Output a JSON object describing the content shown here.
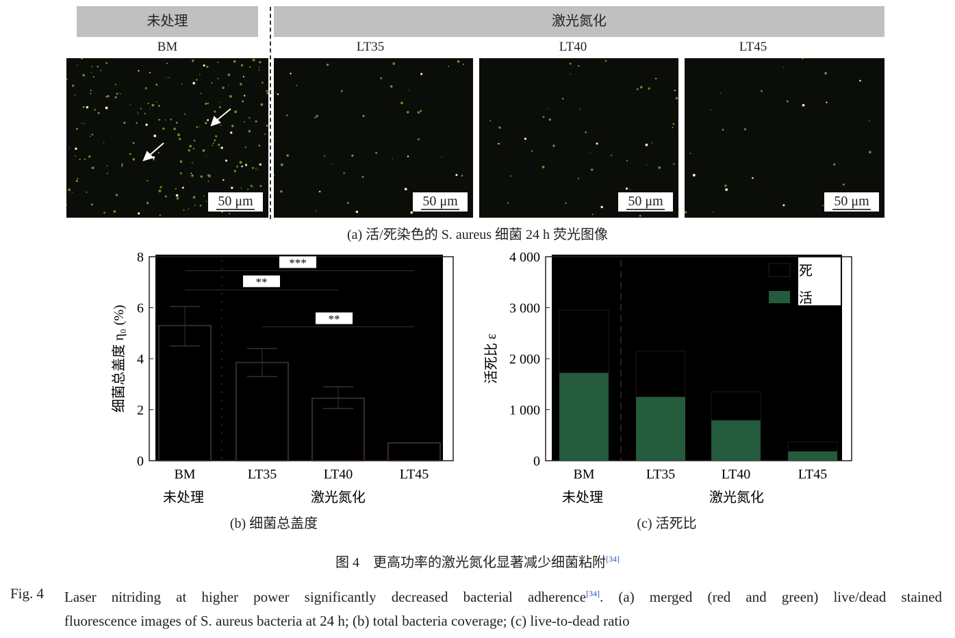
{
  "headers": {
    "untreated": "未处理",
    "laser": "激光氮化"
  },
  "panels": [
    {
      "label": "BM",
      "scale": "50 μm"
    },
    {
      "label": "LT35",
      "scale": "50 μm"
    },
    {
      "label": "LT40",
      "scale": "50 μm"
    },
    {
      "label": "LT45",
      "scale": "50 μm"
    }
  ],
  "caption_a": "(a) 活/死染色的 S. aureus 细菌 24 h 荧光图像",
  "caption_b": "(b) 细菌总盖度",
  "caption_c": "(c) 活死比",
  "group_labels": {
    "untreated": "未处理",
    "laser": "激光氮化"
  },
  "figure_title_cn": "图 4　更高功率的激光氮化显著减少细菌粘附",
  "figure_ref": "[34]",
  "figure_caption_en": {
    "prefix": "Fig. 4",
    "line1": "Laser nitriding at higher power significantly decreased bacterial adherence",
    "ref": "[34]",
    "line1_rest": ". (a) merged (red and green) live/dead stained",
    "line2": "fluorescence images of S. aureus bacteria at 24 h; (b) total bacteria coverage; (c) live-to-dead ratio"
  },
  "chart_data": [
    {
      "type": "bar",
      "categories": [
        "BM",
        "LT35",
        "LT40",
        "LT45"
      ],
      "values": [
        5.3,
        3.85,
        2.45,
        0.7
      ],
      "error_low": [
        4.5,
        3.3,
        2.05,
        0.7
      ],
      "error_high": [
        6.05,
        4.4,
        2.9,
        0.7
      ],
      "ylabel": "细菌总盖度 η₀ (%)",
      "ylim": [
        0,
        8
      ],
      "yticks": [
        "0",
        "2",
        "4",
        "6",
        "8"
      ],
      "significance": [
        {
          "from": "BM",
          "to": "LT45",
          "label": "***"
        },
        {
          "from": "BM",
          "to": "LT40",
          "label": "**"
        },
        {
          "from": "LT35",
          "to": "LT45",
          "label": "**"
        }
      ],
      "colors": {
        "bar": "#000000",
        "bar_edge": "#3a2a28"
      }
    },
    {
      "type": "bar",
      "stacked": true,
      "categories": [
        "BM",
        "LT35",
        "LT40",
        "LT45"
      ],
      "series": [
        {
          "name": "活",
          "values": [
            1720,
            1250,
            790,
            180
          ],
          "color": "#245b3c"
        },
        {
          "name": "死",
          "values": [
            1230,
            900,
            560,
            190
          ],
          "color": "#000000"
        }
      ],
      "ylabel": "活死比 ε",
      "ylim": [
        0,
        4000
      ],
      "yticks": [
        "0",
        "1 000",
        "2 000",
        "3 000",
        "4 000"
      ],
      "legend": "top-right"
    }
  ]
}
